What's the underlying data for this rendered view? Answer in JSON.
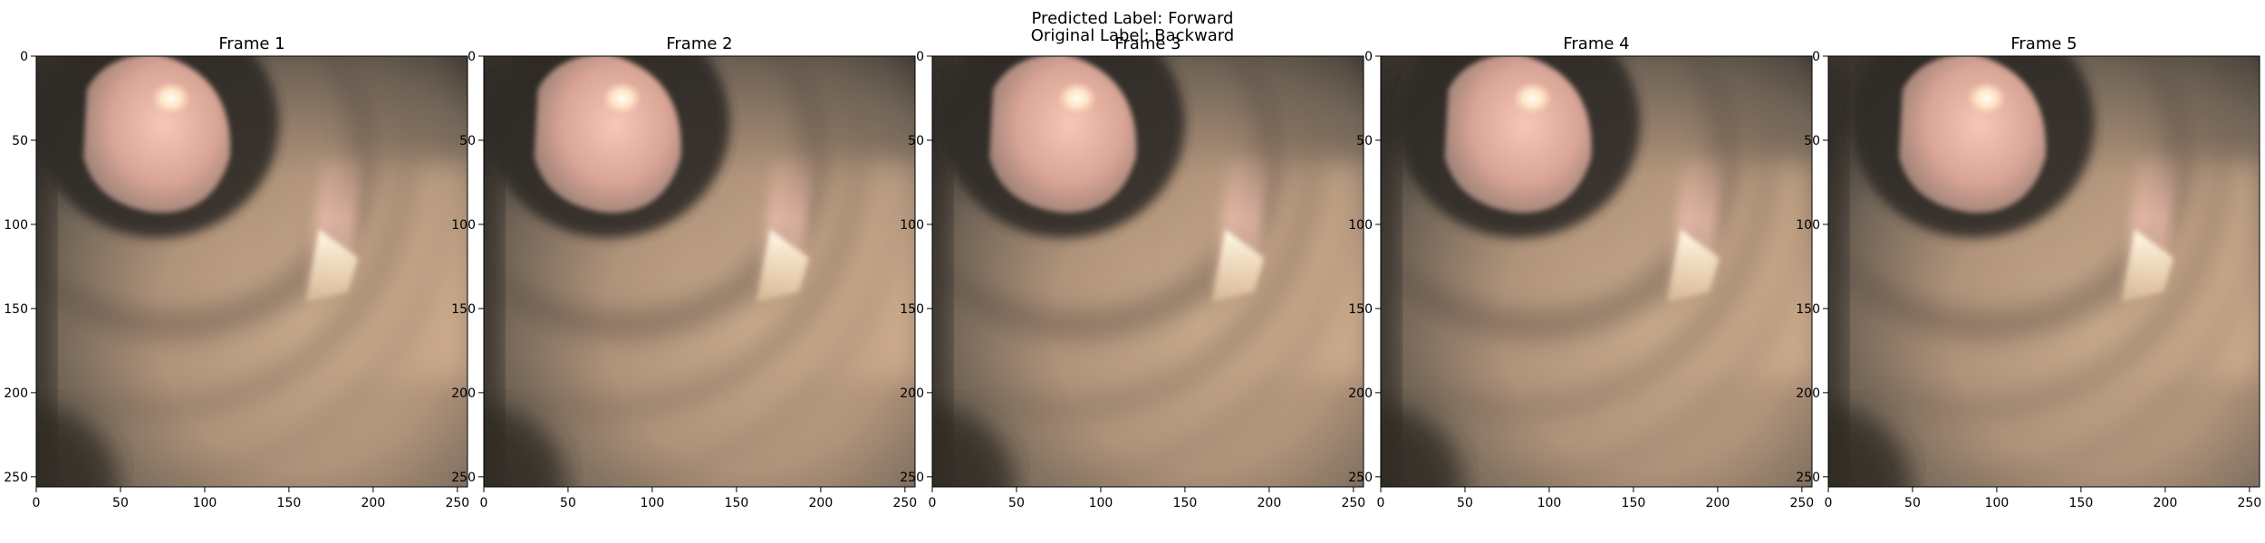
{
  "figure": {
    "predicted_label": "Predicted Label: Forward",
    "original_label": "Original Label: Backward"
  },
  "panels": [
    {
      "title": "Frame 1",
      "shift": 0
    },
    {
      "title": "Frame 2",
      "shift": 2
    },
    {
      "title": "Frame 3",
      "shift": 6
    },
    {
      "title": "Frame 4",
      "shift": 10
    },
    {
      "title": "Frame 5",
      "shift": 14
    }
  ],
  "axes": {
    "x_ticks": [
      "0",
      "50",
      "100",
      "150",
      "200",
      "250"
    ],
    "y_ticks": [
      "0",
      "50",
      "100",
      "150",
      "200",
      "250"
    ],
    "xlim": [
      0,
      256
    ],
    "ylim": [
      256,
      0
    ]
  },
  "colors": {
    "tissue_base": "#c7a98c",
    "tissue_dark": "#3a342e",
    "lumen_pink": "#e6b2a4",
    "highlight": "#fff6e0"
  }
}
